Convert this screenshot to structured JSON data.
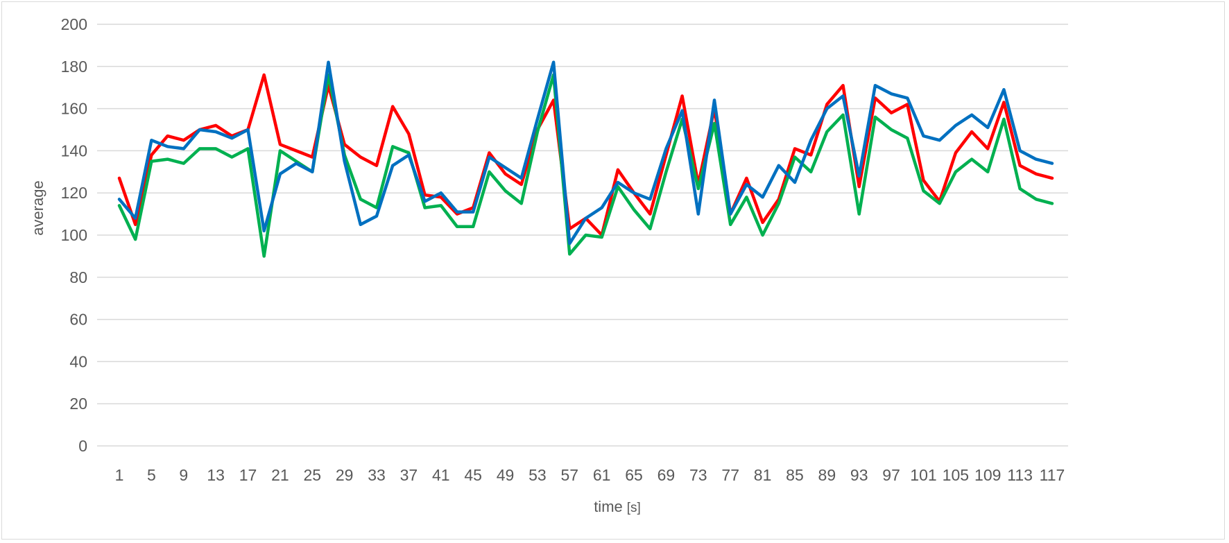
{
  "chart_data": {
    "type": "line",
    "xlabel": "time",
    "xlabel_unit": "[s]",
    "ylabel": "average",
    "ylim": [
      0,
      200
    ],
    "yticks": [
      0,
      20,
      40,
      60,
      80,
      100,
      120,
      140,
      160,
      180,
      200
    ],
    "xtick_labels": [
      "1",
      "5",
      "9",
      "13",
      "17",
      "21",
      "25",
      "29",
      "33",
      "37",
      "41",
      "45",
      "49",
      "53",
      "57",
      "61",
      "65",
      "69",
      "73",
      "77",
      "81",
      "85",
      "89",
      "93",
      "97",
      "101",
      "105",
      "109",
      "113",
      "117"
    ],
    "grid": true,
    "legend": "none",
    "x": [
      1,
      3,
      5,
      7,
      9,
      11,
      13,
      15,
      17,
      19,
      21,
      23,
      25,
      27,
      29,
      31,
      33,
      35,
      37,
      39,
      41,
      43,
      45,
      47,
      49,
      51,
      53,
      55,
      57,
      59,
      61,
      63,
      65,
      67,
      69,
      71,
      73,
      75,
      77,
      79,
      81,
      83,
      85,
      87,
      89,
      91,
      93,
      95,
      97,
      99,
      101,
      103,
      105,
      107,
      109,
      111,
      113,
      115,
      117
    ],
    "series": [
      {
        "color": "#ff0000",
        "values": [
          127,
          105,
          138,
          147,
          145,
          150,
          152,
          147,
          150,
          176,
          143,
          140,
          137,
          171,
          143,
          137,
          133,
          161,
          148,
          119,
          118,
          110,
          113,
          139,
          129,
          124,
          150,
          164,
          103,
          108,
          100,
          131,
          120,
          110,
          138,
          166,
          124,
          160,
          110,
          127,
          106,
          117,
          141,
          138,
          162,
          171,
          123,
          165,
          158,
          162,
          126,
          116,
          139,
          149,
          141,
          163,
          133,
          129,
          127
        ]
      },
      {
        "color": "#00b050",
        "values": [
          114,
          98,
          135,
          136,
          134,
          141,
          141,
          137,
          141,
          90,
          140,
          135,
          130,
          176,
          138,
          117,
          113,
          142,
          139,
          113,
          114,
          104,
          104,
          130,
          121,
          115,
          149,
          176,
          91,
          100,
          99,
          123,
          112,
          103,
          130,
          155,
          122,
          153,
          105,
          118,
          100,
          115,
          137,
          130,
          149,
          157,
          110,
          156,
          150,
          146,
          121,
          115,
          130,
          136,
          130,
          155,
          122,
          117,
          115
        ]
      },
      {
        "color": "#0070c0",
        "values": [
          117,
          108,
          145,
          142,
          141,
          150,
          149,
          146,
          150,
          102,
          129,
          134,
          130,
          182,
          135,
          105,
          109,
          133,
          138,
          116,
          120,
          111,
          111,
          137,
          132,
          127,
          155,
          182,
          96,
          108,
          113,
          125,
          120,
          117,
          141,
          159,
          110,
          164,
          110,
          124,
          118,
          133,
          125,
          145,
          160,
          166,
          128,
          171,
          167,
          165,
          147,
          145,
          152,
          157,
          151,
          169,
          140,
          136,
          134
        ]
      }
    ]
  }
}
